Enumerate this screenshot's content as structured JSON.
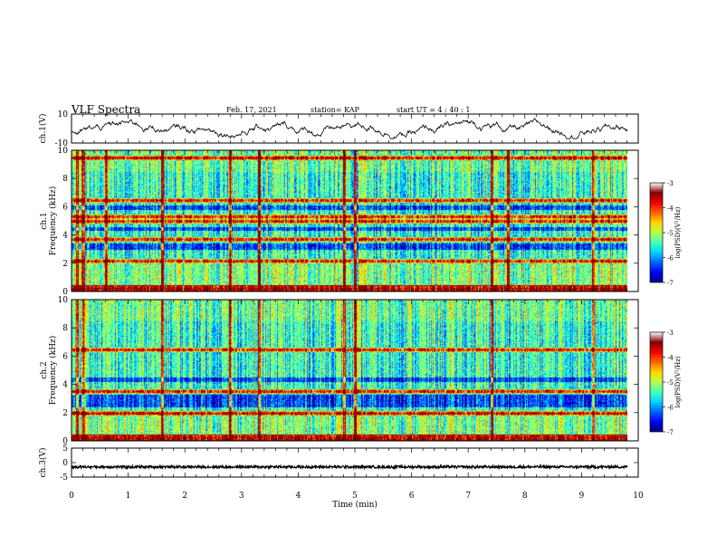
{
  "header": {
    "title": "VLF Spectra",
    "date": "Feb. 17, 2021",
    "station": "station= KAP",
    "start_ut": "start  UT  =   4 : 40 : 1"
  },
  "chart_data": [
    {
      "type": "line",
      "name": "ch1-waveform",
      "ylabel": "ch.1(V)",
      "ylim": [
        -10,
        10
      ],
      "yticks": [
        "10",
        "-10"
      ],
      "xlim": [
        0,
        10
      ],
      "approx_level_range": [
        -5,
        5
      ]
    },
    {
      "type": "heatmap",
      "name": "ch1-spectrogram",
      "ylabel": "ch.1\nFrequency (kHz)",
      "ylim": [
        0,
        10
      ],
      "yticks": [
        "0",
        "2",
        "4",
        "6",
        "8",
        "10"
      ],
      "xlim": [
        0,
        9.8
      ],
      "colorbar": {
        "label": "log(PSD)(V²/Hz)",
        "range": [
          -7,
          -3
        ],
        "ticks": [
          "-3",
          "-4",
          "-5",
          "-6",
          "-7"
        ]
      },
      "strong_lines_khz": [
        0.2,
        2.2,
        3.7,
        5.0,
        5.3,
        6.5,
        9.5
      ],
      "weak_bands_khz": [
        [
          3.0,
          3.4
        ],
        [
          4.3,
          4.6
        ],
        [
          5.8,
          6.1
        ]
      ],
      "impulse_times_min": [
        0.1,
        0.2,
        0.6,
        1.6,
        2.8,
        3.3,
        4.8,
        5.0,
        7.4,
        7.7,
        9.2
      ]
    },
    {
      "type": "heatmap",
      "name": "ch2-spectrogram",
      "ylabel": "ch.2\nFrequency (kHz)",
      "ylim": [
        0,
        10
      ],
      "yticks": [
        "0",
        "2",
        "4",
        "6",
        "8",
        "10"
      ],
      "xlim": [
        0,
        9.8
      ],
      "colorbar": {
        "label": "log(PSD)(V²/Hz)",
        "range": [
          -7,
          -3
        ],
        "ticks": [
          "-3",
          "-4",
          "-5",
          "-6",
          "-7"
        ]
      },
      "strong_lines_khz": [
        0.2,
        2.0,
        3.5,
        6.5
      ],
      "weak_bands_khz": [
        [
          2.4,
          3.3
        ],
        [
          4.2,
          4.5
        ]
      ],
      "impulse_times_min": [
        0.1,
        0.2,
        1.6,
        2.8,
        3.3,
        4.8,
        5.0,
        7.4,
        9.2
      ]
    },
    {
      "type": "line",
      "name": "ch3-waveform",
      "ylabel": "ch.3(V)",
      "ylim": [
        -5,
        5
      ],
      "yticks": [
        "5",
        "0",
        "-5"
      ],
      "xlim": [
        0,
        10
      ],
      "xlabel": "Time  (min)",
      "xticks": [
        "0",
        "1",
        "2",
        "3",
        "4",
        "5",
        "6",
        "7",
        "8",
        "9",
        "10"
      ],
      "approx_level": -1.5
    }
  ]
}
